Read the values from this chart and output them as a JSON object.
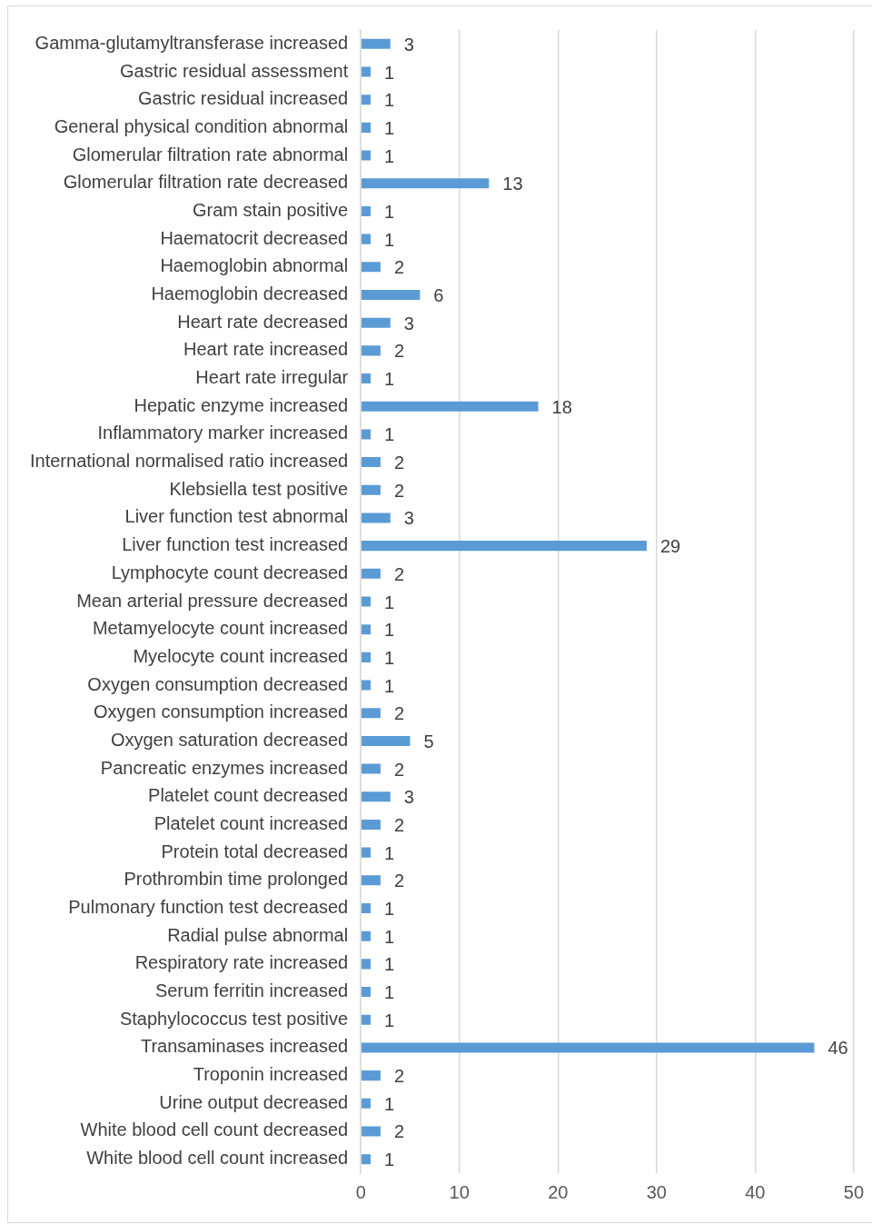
{
  "chart_data": {
    "type": "bar",
    "orientation": "horizontal",
    "categories": [
      "Gamma-glutamyltransferase increased",
      "Gastric residual assessment",
      "Gastric residual increased",
      "General physical condition abnormal",
      "Glomerular filtration rate abnormal",
      "Glomerular filtration rate decreased",
      "Gram stain positive",
      "Haematocrit decreased",
      "Haemoglobin abnormal",
      "Haemoglobin decreased",
      "Heart rate decreased",
      "Heart rate increased",
      "Heart rate irregular",
      "Hepatic enzyme increased",
      "Inflammatory marker increased",
      "International normalised ratio increased",
      "Klebsiella test positive",
      "Liver function test abnormal",
      "Liver function test increased",
      "Lymphocyte count decreased",
      "Mean arterial pressure decreased",
      "Metamyelocyte count increased",
      "Myelocyte count increased",
      "Oxygen consumption decreased",
      "Oxygen consumption increased",
      "Oxygen saturation decreased",
      "Pancreatic enzymes increased",
      "Platelet count decreased",
      "Platelet count increased",
      "Protein total decreased",
      "Prothrombin time prolonged",
      "Pulmonary function test decreased",
      "Radial pulse abnormal",
      "Respiratory rate increased",
      "Serum ferritin increased",
      "Staphylococcus test positive",
      "Transaminases increased",
      "Troponin increased",
      "Urine output decreased",
      "White blood cell count decreased",
      "White blood cell count increased"
    ],
    "values": [
      3,
      1,
      1,
      1,
      1,
      13,
      1,
      1,
      2,
      6,
      3,
      2,
      1,
      18,
      1,
      2,
      2,
      3,
      29,
      2,
      1,
      1,
      1,
      1,
      2,
      5,
      2,
      3,
      2,
      1,
      2,
      1,
      1,
      1,
      1,
      1,
      46,
      2,
      1,
      2,
      1
    ],
    "color": "#5b9bd5",
    "xlim": [
      0,
      50
    ],
    "xticks": [
      0,
      10,
      20,
      30,
      40,
      50
    ],
    "grid": "x",
    "data_labels": true
  }
}
